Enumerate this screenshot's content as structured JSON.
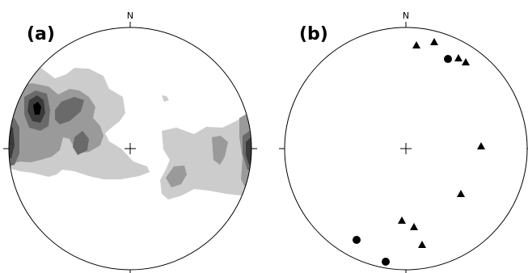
{
  "panels": [
    {
      "label": "(a)",
      "north": "N"
    },
    {
      "label": "(b)",
      "north": "N"
    }
  ],
  "contour_colors": [
    "#cccccc",
    "#9a9a9a",
    "#6a6a6a",
    "#3b3b3b",
    "#000000"
  ],
  "point_color": "#000000",
  "symbols": [
    "triangle",
    "circle"
  ]
}
